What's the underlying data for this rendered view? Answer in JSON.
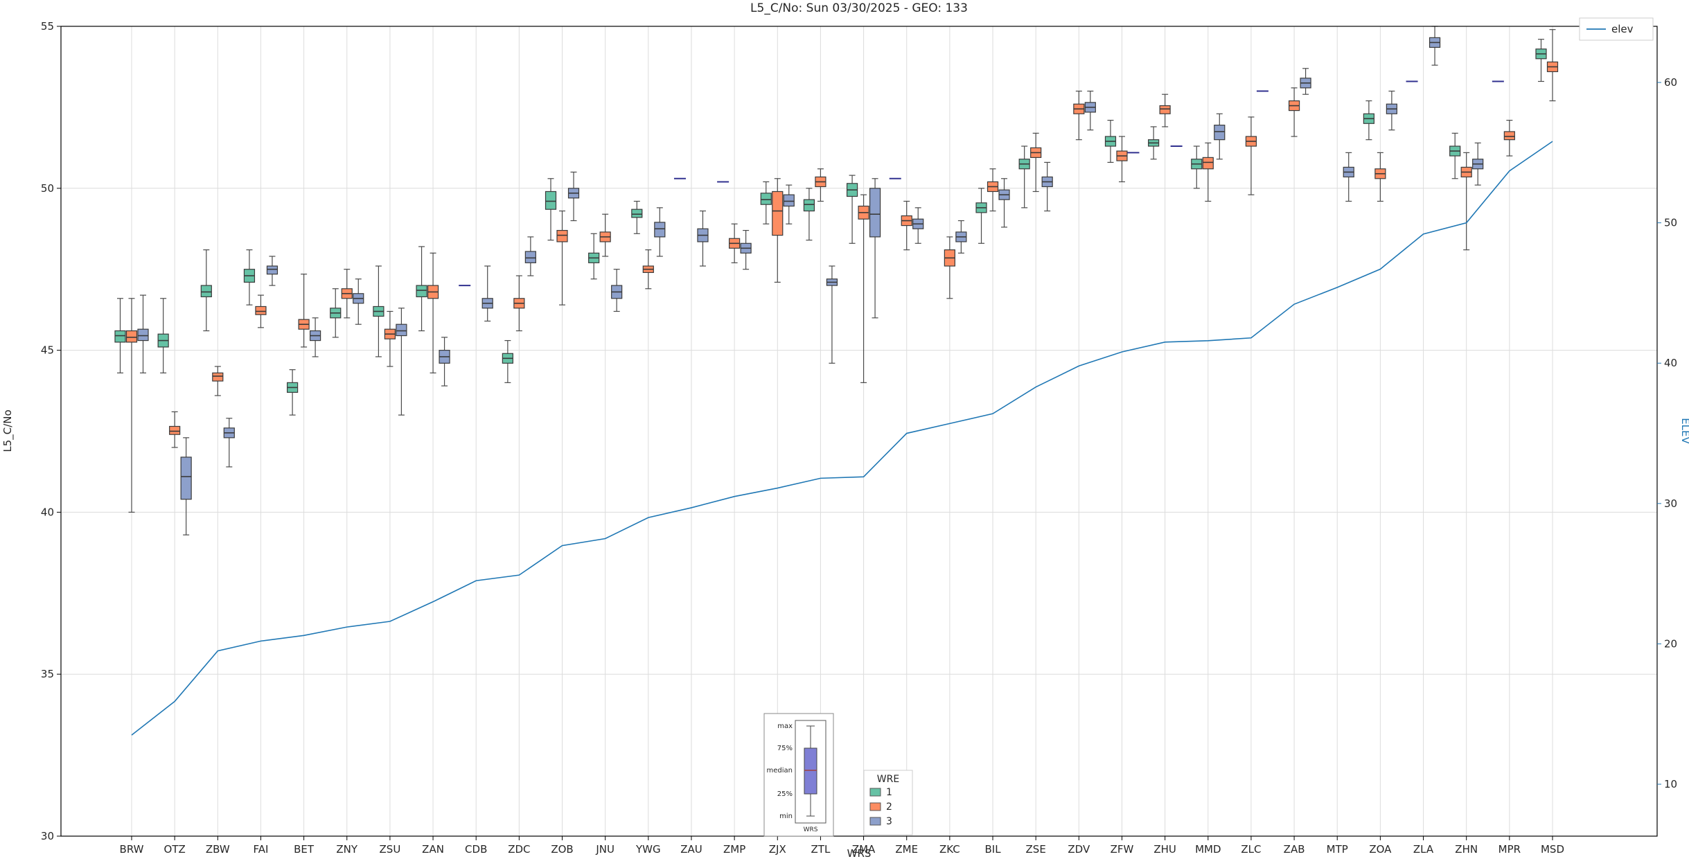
{
  "figure": {
    "title": "L5_C/No: Sun 03/30/2025 - GEO: 133"
  },
  "chart_data": {
    "type": "grouped-boxplot+line",
    "title": "L5_C/No: Sun 03/30/2025 - GEO: 133",
    "xlabel": "WRS",
    "ylabel_left": "L5_C/No",
    "ylabel_right": "ELEV",
    "grid": true,
    "legend_position": "bottom-center and top-right",
    "y_left": {
      "range": [
        30,
        55
      ],
      "ticks": [
        30,
        35,
        40,
        45,
        50,
        55
      ]
    },
    "y_right": {
      "range": [
        6.3,
        64
      ],
      "ticks": [
        10,
        20,
        30,
        40,
        50,
        60
      ],
      "color": "#1f77b4"
    },
    "categories": [
      "BRW",
      "OTZ",
      "ZBW",
      "FAI",
      "BET",
      "ZNY",
      "ZSU",
      "ZAN",
      "CDB",
      "ZDC",
      "ZOB",
      "JNU",
      "YWG",
      "ZAU",
      "ZMP",
      "ZJX",
      "ZTL",
      "ZMA",
      "ZME",
      "ZKC",
      "BIL",
      "ZSE",
      "ZDV",
      "ZFW",
      "ZHU",
      "MMD",
      "ZLC",
      "ZAB",
      "MTP",
      "ZOA",
      "ZLA",
      "ZHN",
      "MPR",
      "MSD"
    ],
    "series": [
      {
        "name": "1",
        "color": "#66c2a5"
      },
      {
        "name": "2",
        "color": "#fc8d62"
      },
      {
        "name": "3",
        "color": "#8da0cb"
      }
    ],
    "boxes_format": "[min, q1, median, q3, max] per WRE series (null = not present; min==max = single flat mark)",
    "boxes": [
      [
        [
          44.3,
          45.25,
          45.45,
          45.6,
          46.6
        ],
        [
          40.0,
          45.25,
          45.4,
          45.6,
          46.6
        ],
        [
          44.3,
          45.3,
          45.45,
          45.65,
          46.7
        ]
      ],
      [
        [
          44.3,
          45.1,
          45.3,
          45.5,
          46.6
        ],
        [
          42.0,
          42.4,
          42.5,
          42.65,
          43.1
        ],
        [
          39.3,
          40.4,
          41.1,
          41.7,
          42.3
        ]
      ],
      [
        [
          45.6,
          46.65,
          46.8,
          47.0,
          48.1
        ],
        [
          43.6,
          44.05,
          44.2,
          44.3,
          44.5
        ],
        [
          41.4,
          42.3,
          42.45,
          42.6,
          42.9
        ]
      ],
      [
        [
          46.4,
          47.1,
          47.3,
          47.5,
          48.1
        ],
        [
          45.7,
          46.1,
          46.2,
          46.35,
          46.7
        ],
        [
          47.0,
          47.35,
          47.5,
          47.6,
          47.9
        ]
      ],
      [
        [
          43.0,
          43.7,
          43.85,
          44.0,
          44.4
        ],
        [
          45.1,
          45.65,
          45.8,
          45.95,
          47.35
        ],
        [
          44.8,
          45.3,
          45.45,
          45.6,
          46.0
        ]
      ],
      [
        [
          45.4,
          46.0,
          46.15,
          46.3,
          46.9
        ],
        [
          46.0,
          46.6,
          46.75,
          46.9,
          47.5
        ],
        [
          45.8,
          46.45,
          46.6,
          46.75,
          47.2
        ]
      ],
      [
        [
          44.8,
          46.05,
          46.2,
          46.35,
          47.6
        ],
        [
          44.5,
          45.35,
          45.5,
          45.65,
          46.2
        ],
        [
          43.0,
          45.45,
          45.6,
          45.8,
          46.3
        ]
      ],
      [
        [
          45.6,
          46.65,
          46.85,
          47.0,
          48.2
        ],
        [
          44.3,
          46.6,
          46.8,
          47.0,
          48.0
        ],
        [
          43.9,
          44.6,
          44.8,
          45.0,
          45.4
        ]
      ],
      [
        [
          47.0,
          47.0,
          47.0,
          47.0,
          47.0
        ],
        null,
        [
          45.9,
          46.3,
          46.45,
          46.6,
          47.6
        ]
      ],
      [
        [
          44.0,
          44.6,
          44.75,
          44.9,
          45.3
        ],
        [
          45.6,
          46.3,
          46.45,
          46.6,
          47.3
        ],
        [
          47.3,
          47.7,
          47.85,
          48.05,
          48.5
        ]
      ],
      [
        [
          48.4,
          49.35,
          49.6,
          49.9,
          50.3
        ],
        [
          46.4,
          48.35,
          48.55,
          48.7,
          49.3
        ],
        [
          49.0,
          49.7,
          49.85,
          50.0,
          50.5
        ]
      ],
      [
        [
          47.2,
          47.7,
          47.85,
          48.0,
          48.6
        ],
        [
          47.9,
          48.35,
          48.5,
          48.65,
          49.2
        ],
        [
          46.2,
          46.6,
          46.8,
          47.0,
          47.5
        ]
      ],
      [
        [
          48.6,
          49.1,
          49.2,
          49.35,
          49.6
        ],
        [
          46.9,
          47.4,
          47.5,
          47.6,
          48.1
        ],
        [
          47.9,
          48.5,
          48.75,
          48.95,
          49.4
        ]
      ],
      [
        [
          50.3,
          50.3,
          50.3,
          50.3,
          50.3
        ],
        null,
        [
          47.6,
          48.35,
          48.55,
          48.75,
          49.3
        ]
      ],
      [
        [
          50.2,
          50.2,
          50.2,
          50.2,
          50.2
        ],
        [
          47.7,
          48.15,
          48.3,
          48.45,
          48.9
        ],
        [
          47.5,
          48.0,
          48.15,
          48.3,
          48.7
        ]
      ],
      [
        [
          48.9,
          49.5,
          49.65,
          49.85,
          50.2
        ],
        [
          47.1,
          48.55,
          49.3,
          49.9,
          50.3
        ],
        [
          48.9,
          49.45,
          49.6,
          49.8,
          50.1
        ]
      ],
      [
        [
          48.4,
          49.3,
          49.5,
          49.65,
          50.0
        ],
        [
          49.6,
          50.05,
          50.2,
          50.35,
          50.6
        ],
        [
          44.6,
          47.0,
          47.1,
          47.2,
          47.6
        ]
      ],
      [
        [
          48.3,
          49.75,
          49.95,
          50.15,
          50.4
        ],
        [
          44.0,
          49.05,
          49.25,
          49.45,
          49.8
        ],
        [
          46.0,
          48.5,
          49.2,
          50.0,
          50.3
        ]
      ],
      [
        [
          50.3,
          50.3,
          50.3,
          50.3,
          50.3
        ],
        [
          48.1,
          48.85,
          49.0,
          49.15,
          49.6
        ],
        [
          48.3,
          48.75,
          48.9,
          49.05,
          49.4
        ]
      ],
      [
        null,
        [
          46.6,
          47.6,
          47.85,
          48.1,
          48.5
        ],
        [
          48.0,
          48.35,
          48.5,
          48.65,
          49.0
        ]
      ],
      [
        [
          48.3,
          49.25,
          49.4,
          49.55,
          50.0
        ],
        [
          49.3,
          49.9,
          50.05,
          50.2,
          50.6
        ],
        [
          48.8,
          49.65,
          49.8,
          49.95,
          50.3
        ]
      ],
      [
        [
          49.4,
          50.6,
          50.75,
          50.9,
          51.3
        ],
        [
          49.9,
          50.95,
          51.1,
          51.25,
          51.7
        ],
        [
          49.3,
          50.05,
          50.2,
          50.35,
          50.8
        ]
      ],
      [
        null,
        [
          51.5,
          52.3,
          52.45,
          52.6,
          53.0
        ],
        [
          51.8,
          52.35,
          52.5,
          52.65,
          53.0
        ]
      ],
      [
        [
          50.8,
          51.3,
          51.45,
          51.6,
          52.1
        ],
        [
          50.2,
          50.85,
          51.0,
          51.15,
          51.6
        ],
        [
          51.1,
          51.1,
          51.1,
          51.1,
          51.1
        ]
      ],
      [
        [
          50.9,
          51.3,
          51.4,
          51.5,
          51.9
        ],
        [
          51.9,
          52.3,
          52.45,
          52.55,
          52.9
        ],
        [
          51.3,
          51.3,
          51.3,
          51.3,
          51.3
        ]
      ],
      [
        [
          50.0,
          50.6,
          50.75,
          50.9,
          51.3
        ],
        [
          49.6,
          50.6,
          50.8,
          50.95,
          51.4
        ],
        [
          50.9,
          51.5,
          51.75,
          51.95,
          52.3
        ]
      ],
      [
        null,
        [
          49.8,
          51.3,
          51.45,
          51.6,
          52.2
        ],
        [
          53.0,
          53.0,
          53.0,
          53.0,
          53.0
        ]
      ],
      [
        null,
        [
          51.6,
          52.4,
          52.55,
          52.7,
          53.1
        ],
        [
          52.9,
          53.1,
          53.25,
          53.4,
          53.7
        ]
      ],
      [
        null,
        null,
        [
          49.6,
          50.35,
          50.5,
          50.65,
          51.1
        ]
      ],
      [
        [
          51.5,
          52.0,
          52.15,
          52.3,
          52.7
        ],
        [
          49.6,
          50.3,
          50.45,
          50.6,
          51.1
        ],
        [
          51.8,
          52.3,
          52.45,
          52.6,
          53.0
        ]
      ],
      [
        [
          53.3,
          53.3,
          53.3,
          53.3,
          53.3
        ],
        null,
        [
          53.8,
          54.35,
          54.5,
          54.65,
          55.0
        ]
      ],
      [
        [
          50.3,
          51.0,
          51.15,
          51.3,
          51.7
        ],
        [
          48.1,
          50.35,
          50.5,
          50.65,
          51.1
        ],
        [
          50.1,
          50.6,
          50.75,
          50.9,
          51.4
        ]
      ],
      [
        [
          53.3,
          53.3,
          53.3,
          53.3,
          53.3
        ],
        [
          51.0,
          51.5,
          51.6,
          51.75,
          52.1
        ],
        null
      ],
      [
        [
          53.3,
          54.0,
          54.15,
          54.3,
          54.6
        ],
        [
          52.7,
          53.6,
          53.75,
          53.9,
          54.9
        ],
        null
      ]
    ],
    "elev": {
      "name": "elev",
      "color": "#1f77b4",
      "values": [
        13.5,
        15.9,
        19.5,
        20.2,
        20.6,
        21.2,
        21.6,
        23.0,
        24.5,
        24.9,
        27.0,
        27.5,
        29.0,
        29.7,
        30.5,
        31.1,
        31.8,
        31.9,
        35.0,
        35.7,
        36.4,
        38.3,
        39.8,
        40.8,
        41.5,
        41.6,
        41.8,
        44.2,
        45.4,
        46.7,
        49.2,
        50.0,
        53.7,
        55.8
      ]
    },
    "legend_wre": {
      "title": "WRE",
      "entries": [
        "1",
        "2",
        "3"
      ]
    },
    "legend_elev": {
      "label": "elev"
    },
    "inset": {
      "labels": [
        "max",
        "75%",
        "median",
        "25%",
        "min"
      ],
      "xlabel": "WRS",
      "box_color": "#7f7fd5"
    },
    "colors": {
      "box_edge": "#3a3a3a",
      "whisker": "#4a4a4a",
      "flat": "#30308f",
      "grid": "#dcdcdc",
      "frame": "#000000"
    }
  }
}
